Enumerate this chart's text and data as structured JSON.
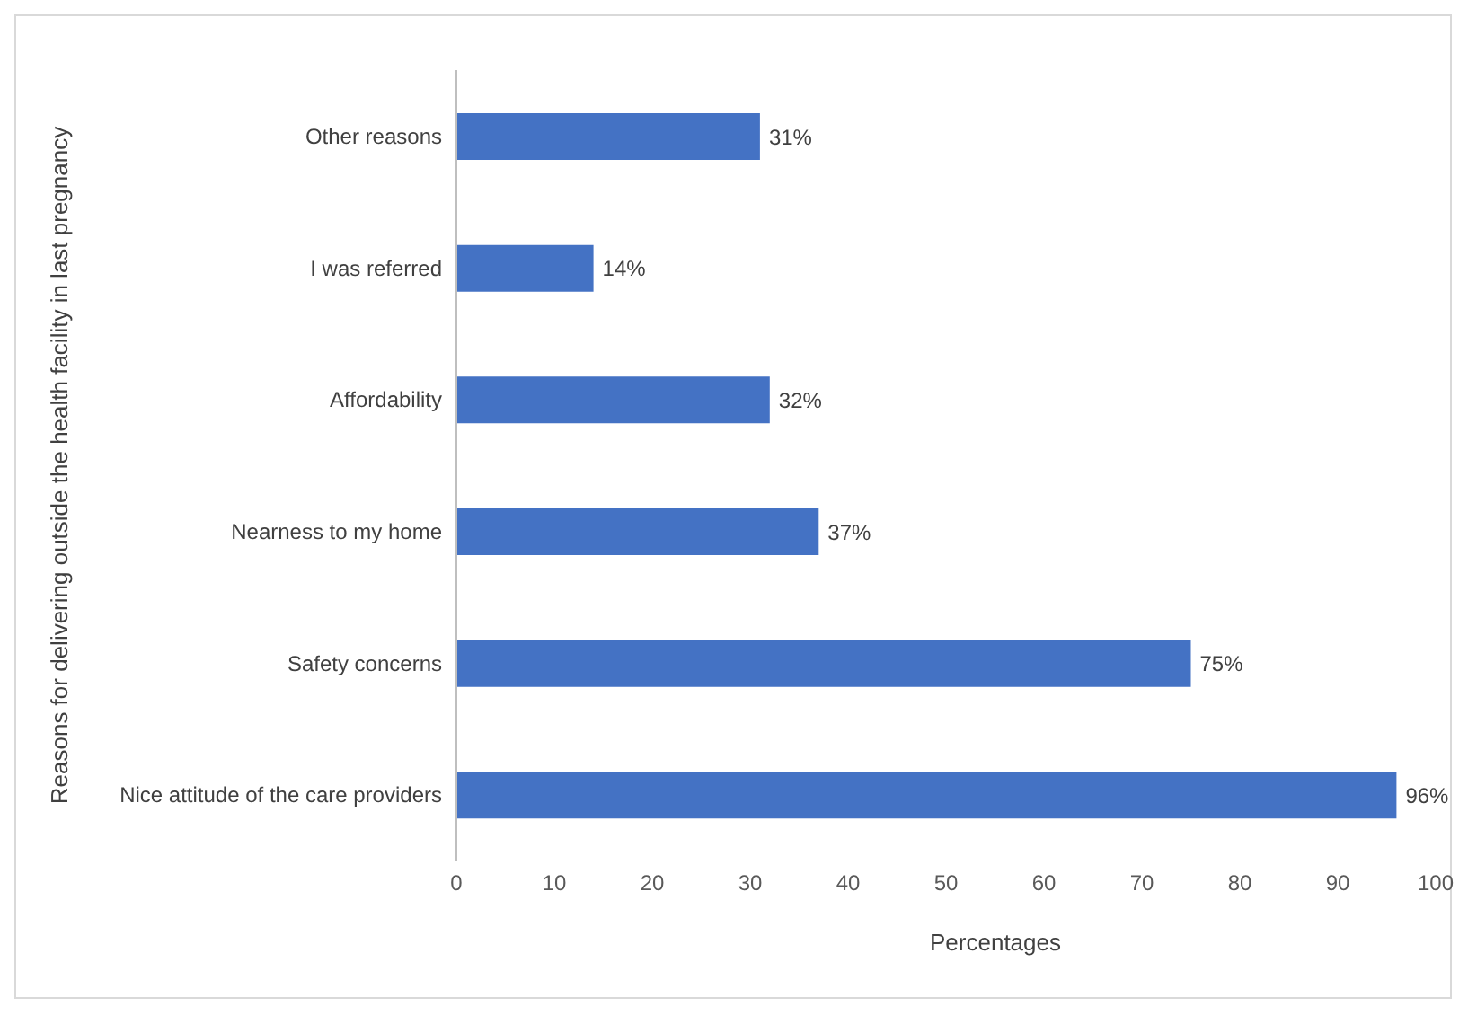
{
  "chart_data": {
    "type": "bar",
    "orientation": "horizontal",
    "ylabel": "Reasons for delivering outside the health facility in last pregnancy",
    "xlabel": "Percentages",
    "categories": [
      "Other reasons",
      "I was referred",
      "Affordability",
      "Nearness to my home",
      "Safety concerns",
      "Nice attitude of the care providers"
    ],
    "values": [
      31,
      14,
      32,
      37,
      75,
      96
    ],
    "value_labels": [
      "31%",
      "14%",
      "32%",
      "37%",
      "75%",
      "96%"
    ],
    "color": "#4472c4",
    "xlim": [
      0,
      100
    ],
    "xticks": [
      0,
      10,
      20,
      30,
      40,
      50,
      60,
      70,
      80,
      90,
      100
    ],
    "grid": false,
    "legend": false
  }
}
